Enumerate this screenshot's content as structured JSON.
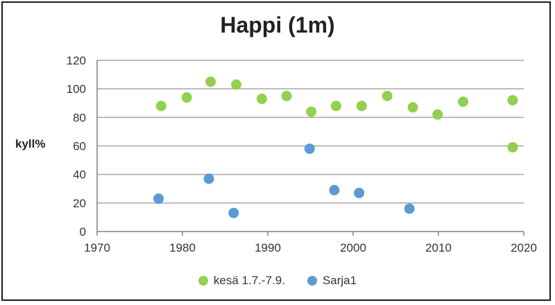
{
  "chart_data": {
    "type": "scatter",
    "title": "Happi (1m)",
    "xlabel": "",
    "ylabel": "kyll%",
    "xlim": [
      1970,
      2020
    ],
    "ylim": [
      0,
      120
    ],
    "xticks": [
      1970,
      1980,
      1990,
      2000,
      2010,
      2020
    ],
    "yticks": [
      0,
      20,
      40,
      60,
      80,
      100,
      120
    ],
    "grid": "horizontal",
    "legend_position": "bottom",
    "series": [
      {
        "name": "kesä 1.7.-7.9.",
        "color": "#92d050",
        "points": [
          {
            "x": 1977.5,
            "y": 88
          },
          {
            "x": 1980.5,
            "y": 94
          },
          {
            "x": 1983.3,
            "y": 105
          },
          {
            "x": 1986.3,
            "y": 103
          },
          {
            "x": 1989.3,
            "y": 93
          },
          {
            "x": 1992.2,
            "y": 95
          },
          {
            "x": 1995.1,
            "y": 84
          },
          {
            "x": 1998,
            "y": 88
          },
          {
            "x": 2001,
            "y": 88
          },
          {
            "x": 2004,
            "y": 95
          },
          {
            "x": 2007,
            "y": 87
          },
          {
            "x": 2009.9,
            "y": 82
          },
          {
            "x": 2012.9,
            "y": 91
          },
          {
            "x": 2018.7,
            "y": 92
          },
          {
            "x": 2018.7,
            "y": 59
          }
        ]
      },
      {
        "name": "Sarja1",
        "color": "#5b9bd5",
        "points": [
          {
            "x": 1977.2,
            "y": 23
          },
          {
            "x": 1983.1,
            "y": 37
          },
          {
            "x": 1986,
            "y": 13
          },
          {
            "x": 1994.9,
            "y": 58
          },
          {
            "x": 1997.8,
            "y": 29
          },
          {
            "x": 2000.7,
            "y": 27
          },
          {
            "x": 2006.6,
            "y": 16
          }
        ]
      }
    ]
  }
}
